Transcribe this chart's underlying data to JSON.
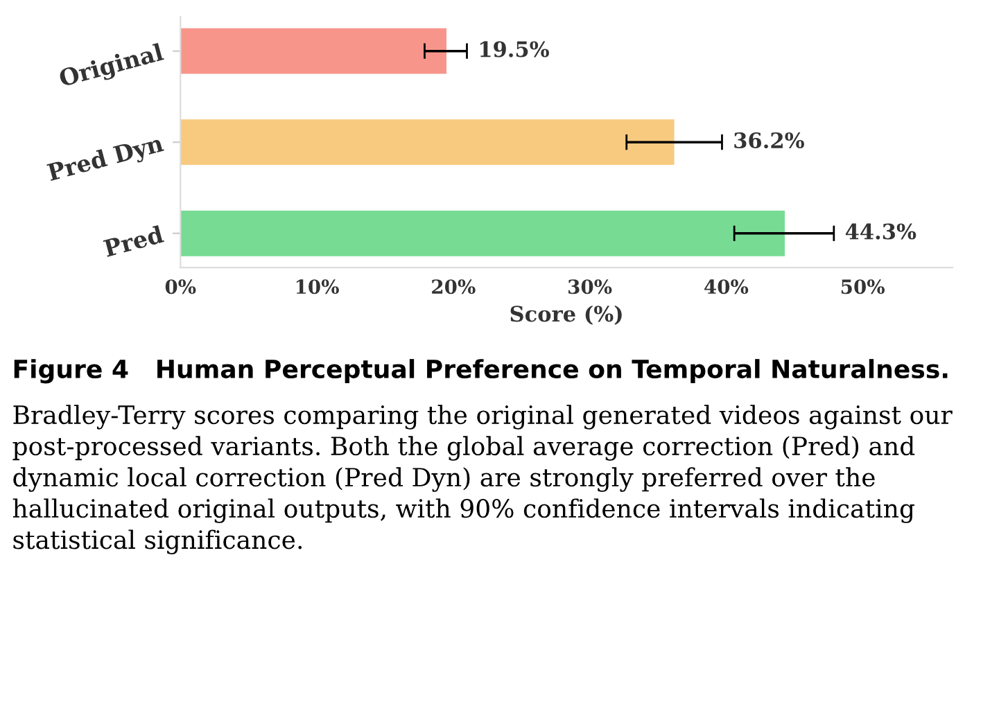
{
  "chart_data": {
    "type": "bar",
    "orientation": "horizontal",
    "xlabel": "Score (%)",
    "categories": [
      "Original",
      "Pred Dyn",
      "Pred"
    ],
    "values": [
      19.5,
      36.2,
      44.3
    ],
    "colors": [
      "#f8958a",
      "#f8ca80",
      "#77db93"
    ],
    "errors": [
      [
        17.9,
        21.0
      ],
      [
        32.7,
        39.7
      ],
      [
        40.6,
        47.9
      ]
    ],
    "value_labels": [
      "19.5%",
      "36.2%",
      "44.3%"
    ],
    "xlim": [
      0,
      56.6
    ],
    "xticks": [
      {
        "value": 0,
        "label": "0%"
      },
      {
        "value": 10,
        "label": "10%"
      },
      {
        "value": 20,
        "label": "20%"
      },
      {
        "value": 30,
        "label": "30%"
      },
      {
        "value": 40,
        "label": "40%"
      },
      {
        "value": 50,
        "label": "50%"
      }
    ],
    "grid": false,
    "legend": false,
    "annotations": [
      "Figure 4   Human Perceptual Preference on Temporal Naturalness.",
      "Bradley-Terry scores comparing the original generated videos against our post-processed variants. Both the global average correction (Pred) and dynamic local correction (Pred Dyn) are strongly preferred over the hallucinated original outputs, with 90% confidence intervals indicating statistical significance."
    ]
  }
}
